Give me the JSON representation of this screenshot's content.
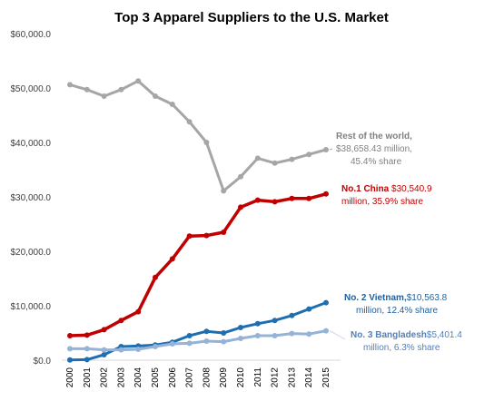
{
  "chart_data": {
    "type": "line",
    "title": "Top 3 Apparel Suppliers to the U.S. Market",
    "xlabel": "",
    "ylabel": "",
    "x": [
      "2000",
      "2001",
      "2002",
      "2003",
      "2004",
      "2005",
      "2006",
      "2007",
      "2008",
      "2009",
      "2010",
      "2011",
      "2012",
      "2013",
      "2014",
      "2015"
    ],
    "ylim": [
      0,
      60000
    ],
    "yticks": [
      "$0.0",
      "$10,000.0",
      "$20,000.0",
      "$30,000.0",
      "$40,000.0",
      "$50,000.0",
      "$60,000.0"
    ],
    "grid": false,
    "legend": "none",
    "series": [
      {
        "name": "Rest of the world",
        "color": "#a6a6a6",
        "values": [
          50600,
          49700,
          48500,
          49700,
          51300,
          48500,
          47000,
          43800,
          40000,
          31100,
          33700,
          37100,
          36200,
          36900,
          37800,
          38658.43
        ]
      },
      {
        "name": "China",
        "color": "#c00000",
        "values": [
          4500,
          4600,
          5600,
          7300,
          8900,
          15200,
          18600,
          22800,
          22900,
          23500,
          28100,
          29400,
          29100,
          29700,
          29700,
          30540.9
        ]
      },
      {
        "name": "Vietnam",
        "color": "#1f6fb0",
        "values": [
          50,
          100,
          1000,
          2500,
          2600,
          2800,
          3300,
          4500,
          5300,
          5000,
          6000,
          6700,
          7300,
          8200,
          9400,
          10563.8
        ]
      },
      {
        "name": "Bangladesh",
        "color": "#95b3d7",
        "values": [
          2100,
          2100,
          1900,
          1900,
          2000,
          2500,
          3000,
          3100,
          3500,
          3400,
          4000,
          4500,
          4500,
          4900,
          4800,
          5401.4
        ]
      }
    ],
    "annotations": {
      "rest": {
        "title": "Rest of the world,",
        "line2": "$38,658.43  million,",
        "line3": "45.4%  share",
        "color": "#808080"
      },
      "china": {
        "title": "No.1 China",
        "value": " $30,540.9",
        "line2": "million, 35.9% share",
        "color": "#c00000"
      },
      "vietnam": {
        "title": "No. 2 Vietnam,",
        "value": "$10,563.8",
        "line2": "million, 12.4% share",
        "color": "#1f5f9b"
      },
      "bangladesh": {
        "title": "No. 3 Bangladesh",
        "value": "$5,401.4",
        "line2": "million, 6.3% share",
        "color": "#4f81bd"
      }
    }
  }
}
